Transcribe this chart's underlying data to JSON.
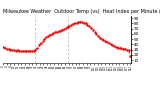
{
  "title": "Milwaukee Weather  Outdoor Temp (vs)  Heat Index per Minute (Last 24 Hours)",
  "bg_color": "#ffffff",
  "line_color": "#ff0000",
  "y_ticks": [
    10,
    20,
    30,
    40,
    50,
    60,
    70,
    80,
    90
  ],
  "ylim": [
    5,
    95
  ],
  "xlim": [
    0,
    143
  ],
  "vline_color": "#aaaaaa",
  "vlines": [
    35,
    72
  ],
  "x_points": [
    0,
    2,
    4,
    6,
    8,
    10,
    12,
    14,
    16,
    18,
    20,
    22,
    24,
    26,
    28,
    30,
    32,
    34,
    36,
    38,
    40,
    42,
    44,
    46,
    48,
    50,
    52,
    54,
    56,
    58,
    60,
    62,
    64,
    66,
    68,
    70,
    72,
    74,
    76,
    78,
    80,
    82,
    84,
    86,
    88,
    90,
    92,
    94,
    96,
    98,
    100,
    102,
    104,
    106,
    108,
    110,
    112,
    114,
    116,
    118,
    120,
    122,
    124,
    126,
    128,
    130,
    132,
    134,
    136,
    138,
    140,
    142
  ],
  "y_points": [
    35,
    33,
    32,
    31,
    30,
    30,
    29,
    28,
    29,
    28,
    28,
    27,
    27,
    27,
    27,
    27,
    27,
    27,
    30,
    33,
    38,
    42,
    46,
    50,
    54,
    56,
    58,
    60,
    62,
    63,
    64,
    65,
    66,
    68,
    70,
    72,
    74,
    76,
    78,
    79,
    80,
    81,
    82,
    83,
    82,
    81,
    80,
    78,
    76,
    72,
    68,
    64,
    60,
    56,
    52,
    50,
    48,
    46,
    44,
    42,
    40,
    38,
    36,
    35,
    34,
    33,
    33,
    32,
    31,
    30,
    29,
    18
  ],
  "title_fontsize": 3.5,
  "tick_labelsize": 3.0,
  "figsize": [
    1.6,
    0.87
  ],
  "dpi": 100
}
